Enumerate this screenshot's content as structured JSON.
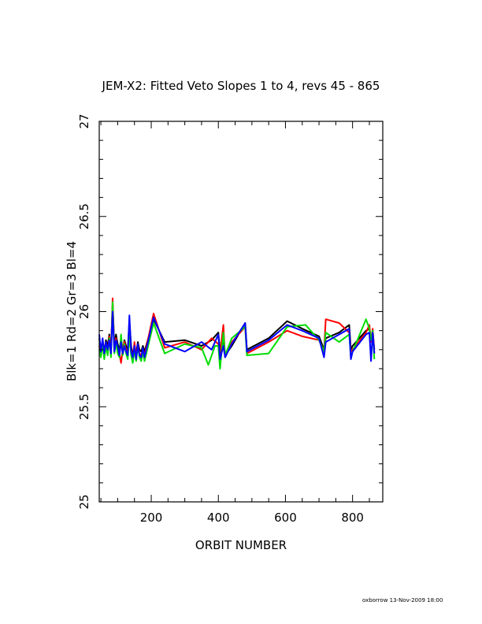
{
  "chart_data": {
    "type": "line",
    "title": "JEM-X2: Fitted Veto Slopes 1 to 4, revs 45 - 865",
    "xlabel": "ORBIT NUMBER",
    "ylabel": "Blk=1  Rd=2  Gr=3  Bl=4",
    "xlim": [
      45,
      890
    ],
    "ylim": [
      25,
      27
    ],
    "xticks": [
      200,
      400,
      600,
      800
    ],
    "yticks": [
      25,
      25.5,
      26,
      26.5,
      27
    ],
    "xtick_labels": [
      "200",
      "400",
      "600",
      "800"
    ],
    "ytick_labels": [
      "25",
      "25.5",
      "26",
      "26.5",
      "27"
    ],
    "grid": false,
    "series": [
      {
        "color": "#000000",
        "x": [
          45,
          50,
          55,
          60,
          65,
          70,
          75,
          80,
          85,
          90,
          95,
          100,
          105,
          110,
          115,
          120,
          125,
          130,
          135,
          140,
          145,
          150,
          155,
          160,
          165,
          170,
          175,
          180,
          207,
          240,
          300,
          350,
          380,
          400,
          405,
          415,
          420,
          440,
          480,
          485,
          550,
          605,
          650,
          700,
          715,
          720,
          760,
          790,
          795,
          800,
          840,
          850,
          855,
          860,
          865
        ],
        "y": [
          25.86,
          25.8,
          25.84,
          25.79,
          25.85,
          25.82,
          25.88,
          25.8,
          26.03,
          25.82,
          25.88,
          25.83,
          25.8,
          25.86,
          25.79,
          25.85,
          25.82,
          25.8,
          25.95,
          25.82,
          25.77,
          25.81,
          25.78,
          25.84,
          25.8,
          25.79,
          25.82,
          25.79,
          25.96,
          25.84,
          25.85,
          25.82,
          25.85,
          25.89,
          25.79,
          25.85,
          25.77,
          25.82,
          25.94,
          25.8,
          25.86,
          25.95,
          25.91,
          25.87,
          25.8,
          25.86,
          25.89,
          25.93,
          25.8,
          25.82,
          25.9,
          25.91,
          25.86,
          25.9,
          25.8
        ]
      },
      {
        "color": "#ff0000",
        "x": [
          45,
          50,
          55,
          60,
          65,
          70,
          75,
          80,
          85,
          90,
          95,
          100,
          105,
          110,
          115,
          120,
          125,
          130,
          135,
          140,
          145,
          150,
          155,
          160,
          165,
          170,
          175,
          180,
          207,
          240,
          300,
          350,
          380,
          400,
          405,
          415,
          420,
          440,
          480,
          485,
          550,
          605,
          650,
          700,
          715,
          720,
          760,
          790,
          795,
          800,
          840,
          850,
          855,
          860,
          865
        ],
        "y": [
          25.82,
          25.78,
          25.84,
          25.76,
          25.84,
          25.79,
          25.87,
          25.79,
          26.07,
          25.8,
          25.86,
          25.81,
          25.78,
          25.73,
          25.8,
          25.84,
          25.8,
          25.78,
          25.9,
          25.8,
          25.75,
          25.84,
          25.76,
          25.83,
          25.78,
          25.77,
          25.8,
          25.77,
          25.99,
          25.81,
          25.84,
          25.8,
          25.86,
          25.83,
          25.78,
          25.93,
          25.76,
          25.84,
          25.92,
          25.78,
          25.84,
          25.9,
          25.87,
          25.85,
          25.79,
          25.96,
          25.94,
          25.89,
          25.79,
          25.8,
          25.89,
          25.93,
          25.84,
          25.91,
          25.78
        ]
      },
      {
        "color": "#00dd00",
        "x": [
          45,
          50,
          55,
          60,
          65,
          70,
          75,
          80,
          85,
          90,
          95,
          100,
          105,
          110,
          115,
          120,
          125,
          130,
          135,
          140,
          145,
          150,
          155,
          160,
          165,
          170,
          175,
          180,
          207,
          240,
          300,
          350,
          370,
          390,
          400,
          405,
          415,
          420,
          440,
          480,
          485,
          550,
          605,
          660,
          700,
          715,
          720,
          760,
          790,
          795,
          800,
          840,
          850,
          855,
          860,
          865
        ],
        "y": [
          25.8,
          25.76,
          25.83,
          25.75,
          25.82,
          25.77,
          25.86,
          25.76,
          26.05,
          25.78,
          25.84,
          25.78,
          25.76,
          25.88,
          25.77,
          25.83,
          25.78,
          25.75,
          25.88,
          25.77,
          25.73,
          25.8,
          25.74,
          25.82,
          25.76,
          25.74,
          25.79,
          25.74,
          25.94,
          25.78,
          25.83,
          25.81,
          25.72,
          25.82,
          25.82,
          25.7,
          25.89,
          25.77,
          25.86,
          25.92,
          25.77,
          25.78,
          25.92,
          25.93,
          25.85,
          25.79,
          25.89,
          25.84,
          25.88,
          25.76,
          25.79,
          25.96,
          25.91,
          25.85,
          25.9,
          25.75
        ]
      },
      {
        "color": "#0000ff",
        "x": [
          45,
          50,
          55,
          60,
          65,
          70,
          75,
          80,
          85,
          90,
          95,
          100,
          105,
          110,
          115,
          120,
          125,
          130,
          135,
          140,
          145,
          150,
          155,
          160,
          165,
          170,
          175,
          180,
          207,
          240,
          300,
          350,
          380,
          400,
          405,
          415,
          420,
          440,
          480,
          485,
          550,
          605,
          650,
          700,
          715,
          720,
          760,
          790,
          795,
          800,
          840,
          850,
          855,
          860,
          865
        ],
        "y": [
          25.88,
          25.79,
          25.86,
          25.78,
          25.84,
          25.8,
          25.85,
          25.78,
          26.0,
          25.79,
          25.85,
          25.82,
          25.77,
          25.84,
          25.78,
          25.82,
          25.79,
          25.77,
          25.98,
          25.79,
          25.76,
          25.82,
          25.75,
          25.83,
          25.77,
          25.76,
          25.81,
          25.76,
          25.97,
          25.83,
          25.79,
          25.84,
          25.8,
          25.88,
          25.75,
          25.82,
          25.76,
          25.83,
          25.94,
          25.79,
          25.85,
          25.93,
          25.9,
          25.86,
          25.76,
          25.84,
          25.88,
          25.91,
          25.75,
          25.79,
          25.88,
          25.89,
          25.74,
          25.89,
          25.78
        ]
      }
    ]
  },
  "footer": "oxborrow 13-Nov-2009 18:00"
}
